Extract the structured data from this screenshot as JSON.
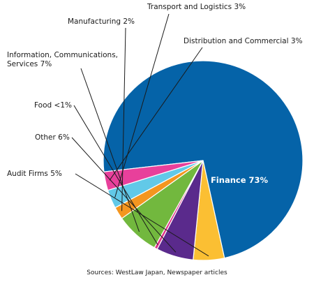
{
  "chart_data": {
    "type": "pie",
    "title": "",
    "slices": [
      {
        "name": "Finance",
        "label": "Finance 73%",
        "value": 73,
        "color": "#0563a8"
      },
      {
        "name": "Audit Firms",
        "label": "Audit Firms 5%",
        "value": 5,
        "color": "#fbbf33"
      },
      {
        "name": "Other",
        "label": "Other 6%",
        "value": 6,
        "color": "#5a2a8c"
      },
      {
        "name": "Food",
        "label": "Food <1%",
        "value": 0.5,
        "color": "#e0358a"
      },
      {
        "name": "Information, Communications, Services",
        "label": "Information, Communications, Services 7%",
        "label_lines": [
          "Information, Communications,",
          "Services 7%"
        ],
        "value": 7,
        "color": "#72b83e"
      },
      {
        "name": "Manufacturing",
        "label": "Manufacturing 2%",
        "value": 2,
        "color": "#f4961f"
      },
      {
        "name": "Transport and Logistics",
        "label": "Transport and Logistics 3%",
        "value": 3,
        "color": "#62c9e8"
      },
      {
        "name": "Distribution and Commercial",
        "label": "Distribution and Commercial 3%",
        "value": 3,
        "color": "#e8409b"
      }
    ]
  },
  "source": "Sources: WestLaw Japan, Newspaper articles"
}
